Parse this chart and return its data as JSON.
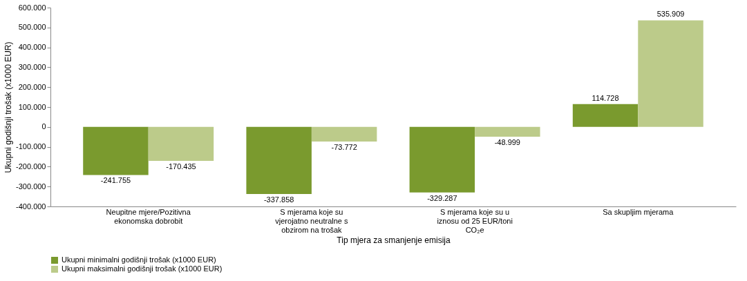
{
  "chart_data": {
    "type": "bar",
    "xlabel": "Tip mjera za smanjenje emisija",
    "ylabel": "Ukupni godišnji trošak (x1000 EUR)",
    "categories": [
      "Neupitne mjere/Pozitivna ekonomska dobrobit",
      "S mjerama koje su vjerojatno neutralne s obzirom na trošak",
      "S mjerama koje su u iznosu od 25 EUR/toni CO₂e",
      "Sa skupljim mjerama"
    ],
    "series": [
      {
        "name": "Ukupni minimalni godišnji trošak (x1000 EUR)",
        "color": "#7a9a2e",
        "values": [
          -241755,
          -337858,
          -329287,
          114728
        ],
        "value_labels": [
          "-241.755",
          "-337.858",
          "-329.287",
          "114.728"
        ]
      },
      {
        "name": "Ukupni maksimalni godišnji trošak (x1000 EUR)",
        "color": "#bccb8a",
        "values": [
          -170435,
          -73772,
          -48999,
          535909
        ],
        "value_labels": [
          "-170.435",
          "-73.772",
          "-48.999",
          "535.909"
        ]
      }
    ],
    "ylim": [
      -400000,
      600000
    ],
    "yticks": [
      {
        "value": -400000,
        "label": "-400.000"
      },
      {
        "value": -300000,
        "label": "-300.000"
      },
      {
        "value": -200000,
        "label": "-200.000"
      },
      {
        "value": -100000,
        "label": "-100.000"
      },
      0,
      {
        "value": 100000,
        "label": "100.000"
      },
      {
        "value": 200000,
        "label": "200.000"
      },
      {
        "value": 300000,
        "label": "300.000"
      },
      {
        "value": 400000,
        "label": "400.000"
      },
      {
        "value": 500000,
        "label": "500.000"
      },
      {
        "value": 600000,
        "label": "600.000"
      }
    ],
    "grid": false,
    "legend": "bottom"
  }
}
